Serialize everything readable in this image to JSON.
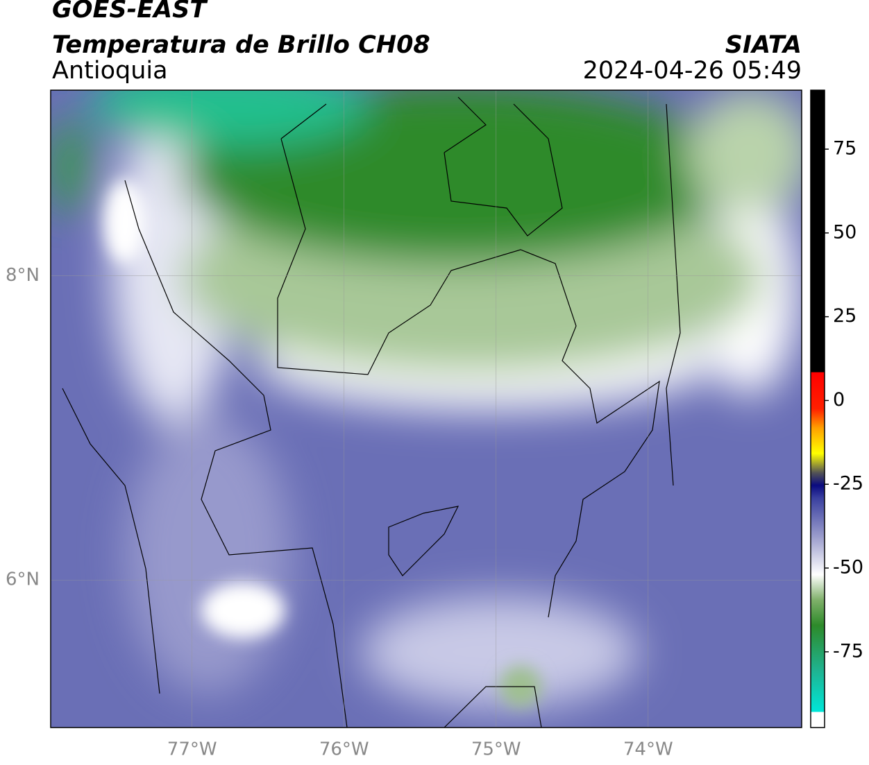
{
  "header": {
    "title": "GOES-EAST",
    "subtitle": "Temperatura de Brillo CH08",
    "region": "Antioquia",
    "source": "SIATA",
    "datetime": "2024-04-26 05:49"
  },
  "map": {
    "xlim": [
      -77.93,
      -72.99
    ],
    "ylim": [
      5.03,
      9.22
    ],
    "xticks": [
      {
        "value": -77,
        "label": "77°W"
      },
      {
        "value": -76,
        "label": "76°W"
      },
      {
        "value": -75,
        "label": "75°W"
      },
      {
        "value": -74,
        "label": "74°W"
      }
    ],
    "yticks": [
      {
        "value": 8,
        "label": "8°N"
      },
      {
        "value": 6,
        "label": "6°N"
      }
    ],
    "grid": true
  },
  "colorbar": {
    "clim": [
      -97.6,
      92.6
    ],
    "ticks": [
      75,
      50,
      25,
      0,
      -25,
      -50,
      -75
    ]
  }
}
